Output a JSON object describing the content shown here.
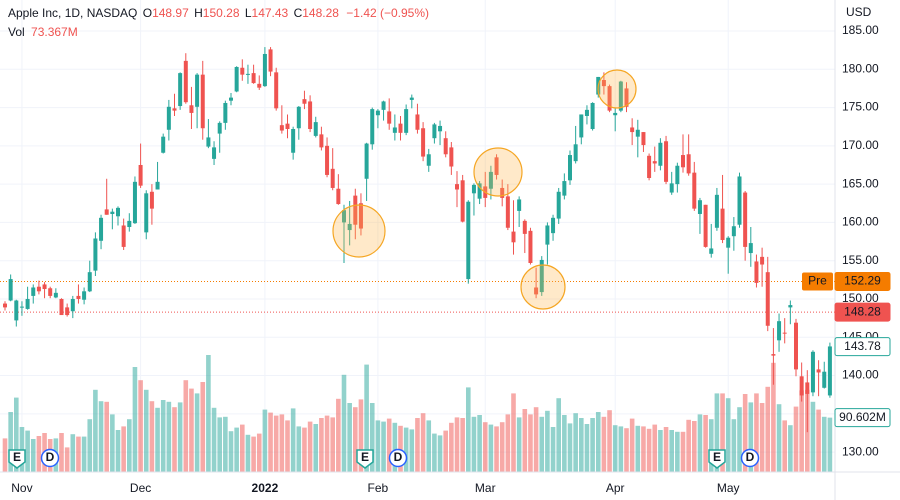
{
  "chart_data": {
    "type": "candlestick",
    "header": {
      "symbol": "Apple Inc, 1D, NASDAQ",
      "ohlc": [
        {
          "key": "O",
          "text": "148.97"
        },
        {
          "key": "H",
          "text": "150.28"
        },
        {
          "key": "L",
          "text": "147.43"
        },
        {
          "key": "C",
          "text": "148.28"
        }
      ],
      "change": "−1.42 (−0.95%)",
      "vol_key": "Vol",
      "vol_text": "73.367M"
    },
    "currency": "USD",
    "categories": [
      null,
      null,
      null,
      "Nov",
      null,
      null,
      null,
      null,
      null,
      null,
      null,
      null,
      null,
      null,
      null,
      null,
      null,
      null,
      null,
      null,
      null,
      null,
      null,
      null,
      "Dec",
      null,
      null,
      null,
      null,
      null,
      null,
      null,
      null,
      null,
      null,
      null,
      null,
      null,
      null,
      null,
      null,
      null,
      null,
      null,
      null,
      null,
      "2022",
      null,
      null,
      null,
      null,
      null,
      null,
      null,
      null,
      null,
      null,
      null,
      null,
      null,
      null,
      null,
      null,
      null,
      null,
      null,
      "Feb",
      null,
      null,
      null,
      null,
      null,
      null,
      null,
      null,
      null,
      null,
      null,
      null,
      null,
      null,
      null,
      null,
      null,
      null,
      "Mar",
      null,
      null,
      null,
      null,
      null,
      null,
      null,
      null,
      null,
      null,
      null,
      null,
      null,
      null,
      null,
      null,
      null,
      null,
      null,
      null,
      null,
      null,
      "Apr",
      null,
      null,
      null,
      null,
      null,
      null,
      null,
      null,
      null,
      null,
      null,
      null,
      null,
      null,
      null,
      null,
      null,
      null,
      null,
      "May",
      null,
      null,
      null,
      null,
      null,
      null,
      null,
      null,
      null,
      null,
      null,
      null,
      null,
      null,
      null,
      null,
      null,
      null
    ],
    "open": [
      149.4,
      149.8,
      147.2,
      148.9,
      148.7,
      150.4,
      151.6,
      151.9,
      151.4,
      150.2,
      150.0,
      148.9,
      148.4,
      150.4,
      149.9,
      151.0,
      153.7,
      157.6,
      161.7,
      161.1,
      160.8,
      159.6,
      159.4,
      159.9,
      167.5,
      158.7,
      164.0,
      164.3,
      169.1,
      172.1,
      174.9,
      175.2,
      181.1,
      175.3,
      175.1,
      179.3,
      169.9,
      168.3,
      171.6,
      173.0,
      175.9,
      177.1,
      180.2,
      179.3,
      179.5,
      178.1,
      177.8,
      182.6,
      179.6,
      172.7,
      172.9,
      169.1,
      172.3,
      176.1,
      175.8,
      171.3,
      171.5,
      170.0,
      167.0,
      164.4,
      160.0,
      159.0,
      163.5,
      162.5,
      165.7,
      170.2,
      174.0,
      174.7,
      174.5,
      171.7,
      172.9,
      171.7,
      176.0,
      174.1,
      172.3,
      167.4,
      171.0,
      171.9,
      171.0,
      169.8,
      165.0,
      165.5,
      152.6,
      163.8,
      163.1,
      164.7,
      164.4,
      168.5,
      164.5,
      163.4,
      158.8,
      161.5,
      160.2,
      158.9,
      151.5,
      150.9,
      157.1,
      158.6,
      160.5,
      163.5,
      165.5,
      168.0,
      171.1,
      173.9,
      172.2,
      176.7,
      178.6,
      177.8,
      174.0,
      174.6,
      177.5,
      172.4,
      171.2,
      171.8,
      168.7,
      168.0,
      167.4,
      170.6,
      163.9,
      165.0,
      168.8,
      168.9,
      166.5,
      161.1,
      162.3,
      155.9,
      159.3,
      161.8,
      156.7,
      158.2,
      159.7,
      163.9,
      156.0,
      154.9,
      155.5,
      153.5,
      142.8,
      144.6,
      145.6,
      148.9,
      146.9,
      139.9,
      139.1,
      137.8,
      140.8,
      138.4,
      137.4
    ],
    "high": [
      149.7,
      153.2,
      149.9,
      149.7,
      151.6,
      151.9,
      152.4,
      152.2,
      151.6,
      151.4,
      150.1,
      149.4,
      150.4,
      151.9,
      151.5,
      155.0,
      158.7,
      161.0,
      165.7,
      161.8,
      162.1,
      160.5,
      161.2,
      166.0,
      170.3,
      164.2,
      165.0,
      167.9,
      171.6,
      176.0,
      176.8,
      179.6,
      182.1,
      177.7,
      179.5,
      181.1,
      173.5,
      170.6,
      173.2,
      175.9,
      176.9,
      180.4,
      181.3,
      180.6,
      180.6,
      179.2,
      182.9,
      182.9,
      180.2,
      175.3,
      174.1,
      172.5,
      175.2,
      177.2,
      176.6,
      173.8,
      172.5,
      171.1,
      169.7,
      166.3,
      162.3,
      162.8,
      164.4,
      163.8,
      170.4,
      175.0,
      174.8,
      175.9,
      176.2,
      174.1,
      173.9,
      175.4,
      176.7,
      175.5,
      173.1,
      169.6,
      173.0,
      173.3,
      171.9,
      170.5,
      166.7,
      166.2,
      162.9,
      165.1,
      165.4,
      166.6,
      167.4,
      168.9,
      165.6,
      165.0,
      162.9,
      163.4,
      160.4,
      159.3,
      154.1,
      155.6,
      160.0,
      161.0,
      164.5,
      166.4,
      169.4,
      172.6,
      174.1,
      175.3,
      175.7,
      179.0,
      179.6,
      178.0,
      174.9,
      178.5,
      178.3,
      173.6,
      173.4,
      171.8,
      169.0,
      169.9,
      171.0,
      171.3,
      166.6,
      167.8,
      171.5,
      171.5,
      167.9,
      163.2,
      162.3,
      159.8,
      164.5,
      166.2,
      158.2,
      160.7,
      166.5,
      164.1,
      159.4,
      155.8,
      156.7,
      155.5,
      146.2,
      148.1,
      147.5,
      149.8,
      147.4,
      141.7,
      140.7,
      143.3,
      142.0,
      141.8,
      144.3
    ],
    "low": [
      148.5,
      149.7,
      146.4,
      147.8,
      148.6,
      149.4,
      150.6,
      150.1,
      150.1,
      150.1,
      147.9,
      147.7,
      147.5,
      149.4,
      149.3,
      150.9,
      153.0,
      156.5,
      161.0,
      159.1,
      159.6,
      156.4,
      158.8,
      159.8,
      164.5,
      157.8,
      159.7,
      164.3,
      169.0,
      170.7,
      173.9,
      174.7,
      175.5,
      172.2,
      172.3,
      170.8,
      169.7,
      167.5,
      169.1,
      172.1,
      175.3,
      177.0,
      178.5,
      178.1,
      178.1,
      177.3,
      177.7,
      179.1,
      174.6,
      171.6,
      171.0,
      168.2,
      170.8,
      174.8,
      171.8,
      171.1,
      169.4,
      165.9,
      164.2,
      162.3,
      154.7,
      157.0,
      157.8,
      158.3,
      162.8,
      169.5,
      172.3,
      173.3,
      172.1,
      170.7,
      170.7,
      171.4,
      174.9,
      171.6,
      168.0,
      166.6,
      170.3,
      170.1,
      168.5,
      166.2,
      162.0,
      160.0,
      152.0,
      160.9,
      162.4,
      162.0,
      163.0,
      165.6,
      162.1,
      159.0,
      155.8,
      159.4,
      156.0,
      154.5,
      150.1,
      150.4,
      154.5,
      157.6,
      159.8,
      163.0,
      164.9,
      167.7,
      170.2,
      172.8,
      172.0,
      176.3,
      176.7,
      174.4,
      171.9,
      174.4,
      174.4,
      170.1,
      168.5,
      169.2,
      165.5,
      166.6,
      166.8,
      165.0,
      163.6,
      163.9,
      166.5,
      166.1,
      161.5,
      158.5,
      156.7,
      155.4,
      158.9,
      157.3,
      153.3,
      156.3,
      159.3,
      155.0,
      154.2,
      151.5,
      151.6,
      145.8,
      138.8,
      143.1,
      144.2,
      146.7,
      139.9,
      136.6,
      132.6,
      137.3,
      137.3,
      138.3,
      137.1
    ],
    "close": [
      148.9,
      152.6,
      149.8,
      149.0,
      150.0,
      151.5,
      151.0,
      151.3,
      150.4,
      150.8,
      147.9,
      147.9,
      150.0,
      150.0,
      151.0,
      153.5,
      157.9,
      160.6,
      161.0,
      161.4,
      161.9,
      156.8,
      160.2,
      165.3,
      164.8,
      163.8,
      161.8,
      165.3,
      171.2,
      175.1,
      174.6,
      179.5,
      175.7,
      174.3,
      179.3,
      172.3,
      171.1,
      169.8,
      173.0,
      175.6,
      176.3,
      180.3,
      179.3,
      179.4,
      178.2,
      177.6,
      182.0,
      179.7,
      174.9,
      172.0,
      172.2,
      172.2,
      175.1,
      175.5,
      172.2,
      173.1,
      169.8,
      166.2,
      164.5,
      162.4,
      161.6,
      159.8,
      159.7,
      159.2,
      170.3,
      174.8,
      174.6,
      175.8,
      172.9,
      172.4,
      171.7,
      174.8,
      176.3,
      172.1,
      168.6,
      168.9,
      172.8,
      172.6,
      168.9,
      167.3,
      164.3,
      160.1,
      162.7,
      164.9,
      165.1,
      163.2,
      166.6,
      166.2,
      163.2,
      159.3,
      157.4,
      163.0,
      158.5,
      154.7,
      150.6,
      155.1,
      159.6,
      160.6,
      164.0,
      165.4,
      168.8,
      170.2,
      174.1,
      174.7,
      175.6,
      179.0,
      177.8,
      174.6,
      174.3,
      178.4,
      175.1,
      171.8,
      172.1,
      170.1,
      165.8,
      167.7,
      170.4,
      165.3,
      165.1,
      167.4,
      167.2,
      166.4,
      161.8,
      162.9,
      156.8,
      156.6,
      163.6,
      157.7,
      158.0,
      159.5,
      166.0,
      156.8,
      157.3,
      152.1,
      154.5,
      146.5,
      142.6,
      147.1,
      145.5,
      149.2,
      140.8,
      137.4,
      137.6,
      143.1,
      140.4,
      140.5,
      143.8
    ],
    "volume": [
      56,
      100,
      124,
      75,
      69,
      55,
      60,
      65,
      55,
      56,
      65,
      41,
      63,
      59,
      59,
      88,
      137,
      118,
      117,
      96,
      70,
      76,
      88,
      175,
      153,
      137,
      118,
      107,
      120,
      117,
      108,
      116,
      153,
      139,
      131,
      150,
      195,
      107,
      91,
      92,
      68,
      74,
      79,
      62,
      59,
      64,
      104,
      99,
      94,
      96,
      86,
      106,
      76,
      74,
      84,
      80,
      90,
      94,
      91,
      122,
      162,
      115,
      108,
      121,
      179,
      115,
      86,
      84,
      89,
      82,
      77,
      74,
      71,
      90,
      98,
      86,
      64,
      61,
      69,
      82,
      91,
      90,
      141,
      92,
      95,
      83,
      79,
      76,
      83,
      96,
      131,
      91,
      105,
      96,
      108,
      92,
      102,
      75,
      123,
      95,
      81,
      98,
      90,
      80,
      90,
      100,
      92,
      103,
      78,
      76,
      73,
      89,
      77,
      76,
      72,
      79,
      70,
      75,
      70,
      67,
      67,
      87,
      85,
      96,
      95,
      88,
      131,
      131,
      123,
      88,
      108,
      130,
      116,
      131,
      115,
      142,
      182,
      113,
      86,
      78,
      109,
      136,
      137,
      117,
      104,
      92,
      90.602
    ],
    "last_volume_label": "90.602M",
    "ylim": [
      127.4,
      189.05
    ],
    "yticks": [
      {
        "value": 130,
        "label": "130.00"
      },
      {
        "value": 135,
        "label": "135.00"
      },
      {
        "value": 140,
        "label": "140.00"
      },
      {
        "value": 145,
        "label": "145.00"
      },
      {
        "value": 150,
        "label": "150.00"
      },
      {
        "value": 155,
        "label": "155.00"
      },
      {
        "value": 160,
        "label": "160.00"
      },
      {
        "value": 165,
        "label": "165.00"
      },
      {
        "value": 170,
        "label": "170.00"
      },
      {
        "value": 175,
        "label": "175.00"
      },
      {
        "value": 180,
        "label": "180.00"
      },
      {
        "value": 185,
        "label": "185.00"
      }
    ],
    "price_lines": [
      {
        "label": "Pre",
        "value": 152.29,
        "color": "#f57c00",
        "line": true
      },
      {
        "value": 148.28,
        "color": "#ef5350",
        "line": true
      },
      {
        "value": 143.78,
        "color": "#26a69a",
        "line": false
      }
    ],
    "up_color": "#26a69a",
    "down_color": "#ef5350",
    "event_markers": [
      "E",
      "D",
      "E",
      "D",
      "E",
      "D"
    ],
    "grid": true
  }
}
